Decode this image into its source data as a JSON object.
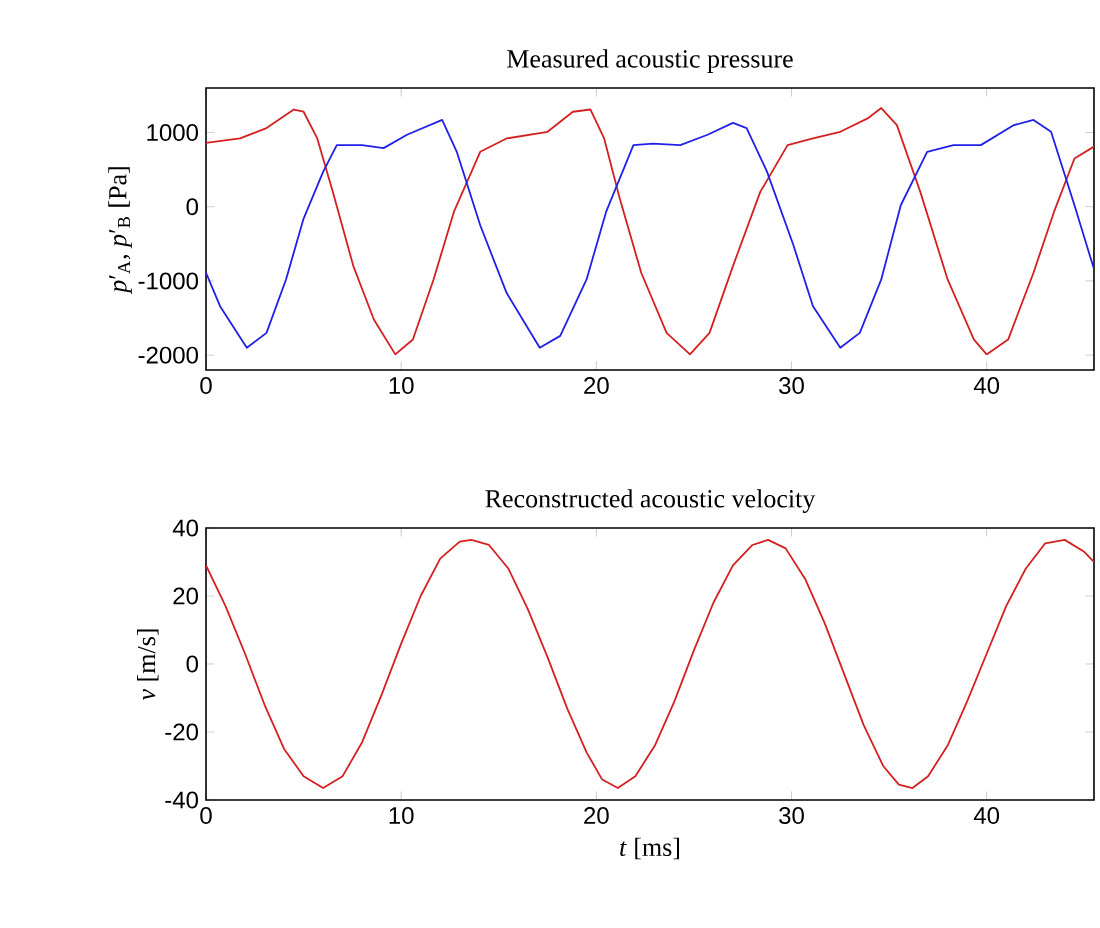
{
  "chart_data": [
    {
      "type": "line",
      "title": "Measured acoustic pressure",
      "ylabel": "*p*′$_{A}$, *p*′$_{B}$ [Pa]",
      "xlim": [
        0,
        45.5
      ],
      "ylim": [
        -2200,
        1600
      ],
      "xticks": [
        0,
        10,
        20,
        30,
        40
      ],
      "yticks": [
        -2000,
        -1000,
        0,
        1000
      ],
      "grid": false,
      "marker": "none",
      "line_style": "solid",
      "series": [
        {
          "color": "#d42020",
          "x": [
            0,
            1.74,
            3.1,
            4.5,
            5.0,
            5.7,
            6.5,
            7.55,
            8.6,
            9.7,
            10.6,
            11.66,
            12.7,
            14.05,
            15.4,
            17.5,
            18.8,
            19.7,
            20.4,
            21.2,
            22.3,
            23.6,
            24.8,
            25.8,
            27.0,
            28.4,
            29.8,
            31.1,
            32.5,
            33.9,
            34.6,
            35.4,
            36.6,
            38.0,
            39.35,
            40.0,
            41.1,
            42.4,
            43.45,
            44.5,
            45.5
          ],
          "values": [
            860,
            920,
            1060,
            1310,
            1280,
            920,
            200,
            -800,
            -1520,
            -1990,
            -1790,
            -980,
            -70,
            740,
            920,
            1010,
            1280,
            1310,
            920,
            110,
            -890,
            -1700,
            -1990,
            -1700,
            -800,
            200,
            830,
            920,
            1010,
            1190,
            1330,
            1100,
            200,
            -980,
            -1790,
            -1990,
            -1790,
            -890,
            -70,
            650,
            810
          ]
        },
        {
          "color": "#2020e8",
          "x": [
            0,
            0.72,
            2.09,
            3.1,
            4.1,
            5.0,
            6.0,
            6.7,
            8.0,
            9.1,
            10.3,
            12.1,
            12.85,
            14.05,
            15.4,
            17.1,
            18.15,
            19.5,
            20.5,
            21.9,
            22.9,
            24.3,
            25.7,
            27.0,
            27.7,
            28.75,
            30.1,
            31.1,
            32.5,
            33.5,
            34.6,
            35.6,
            36.95,
            38.3,
            39.7,
            41.4,
            42.4,
            43.3,
            44.5,
            45.5
          ],
          "values": [
            -890,
            -1340,
            -1900,
            -1700,
            -980,
            -160,
            470,
            830,
            830,
            790,
            970,
            1170,
            740,
            -250,
            -1160,
            -1900,
            -1740,
            -980,
            -70,
            830,
            850,
            830,
            970,
            1130,
            1060,
            470,
            -520,
            -1340,
            -1900,
            -1700,
            -980,
            20,
            740,
            830,
            830,
            1100,
            1170,
            1010,
            20,
            -840
          ]
        }
      ]
    },
    {
      "type": "line",
      "title": "Reconstructed acoustic velocity",
      "xlabel": "*t* [ms]",
      "ylabel": "*v* [m/s]",
      "xlim": [
        0,
        45.5
      ],
      "ylim": [
        -40,
        40
      ],
      "xticks": [
        0,
        10,
        20,
        30,
        40
      ],
      "yticks": [
        -40,
        -20,
        0,
        20,
        40
      ],
      "grid": false,
      "marker": "none",
      "line_style": "solid",
      "series": [
        {
          "color": "#d42020",
          "x": [
            0,
            1,
            2,
            3,
            4,
            5,
            6,
            7,
            8,
            9,
            10,
            11,
            12,
            13,
            13.6,
            14.5,
            15.5,
            16.5,
            17.5,
            18.5,
            19.5,
            20.3,
            21.1,
            22,
            23,
            24,
            25,
            26,
            27,
            28,
            28.8,
            29.7,
            30.7,
            31.7,
            32.7,
            33.7,
            34.7,
            35.5,
            36.2,
            37,
            38,
            39,
            40,
            41,
            42,
            43,
            44,
            45,
            45.5
          ],
          "values": [
            29,
            17,
            3,
            -12,
            -25,
            -33,
            -36.5,
            -33,
            -23,
            -9,
            6,
            20,
            31,
            36,
            36.5,
            35,
            28,
            16,
            2,
            -13,
            -26,
            -34,
            -36.5,
            -33,
            -24,
            -11,
            4,
            18,
            29,
            35,
            36.5,
            34,
            25,
            12,
            -3,
            -18,
            -30,
            -35.5,
            -36.5,
            -33,
            -24,
            -11,
            3,
            17,
            28,
            35.5,
            36.5,
            33,
            30
          ]
        }
      ]
    }
  ]
}
